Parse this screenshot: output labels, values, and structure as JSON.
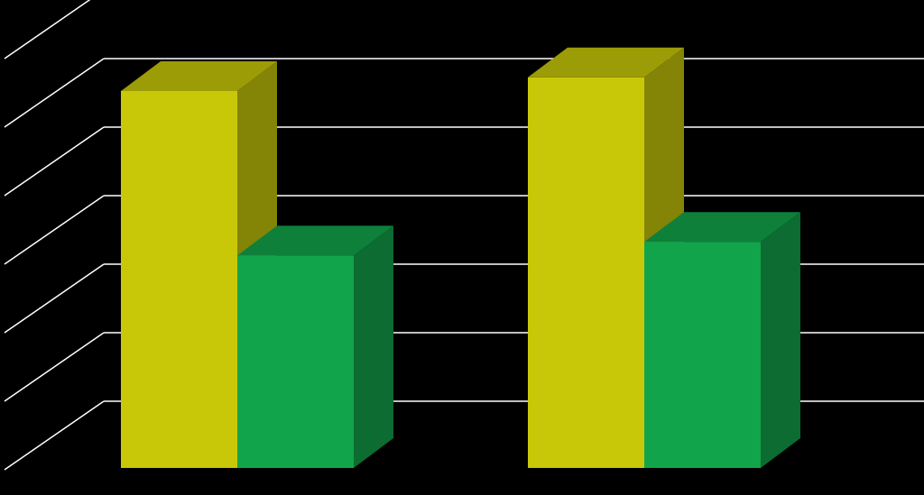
{
  "chart_data": {
    "type": "bar",
    "categories": [
      "",
      ""
    ],
    "series": [
      {
        "color": "#c8c809",
        "values": [
          5.5,
          5.7
        ]
      },
      {
        "color": "#12a44a",
        "values": [
          3.1,
          3.3
        ]
      }
    ],
    "ylim": [
      0,
      7
    ],
    "y_tick_step": 1,
    "grid": true,
    "three_d": true,
    "gridline_color": "#ffffff",
    "background_color": "#000000"
  }
}
